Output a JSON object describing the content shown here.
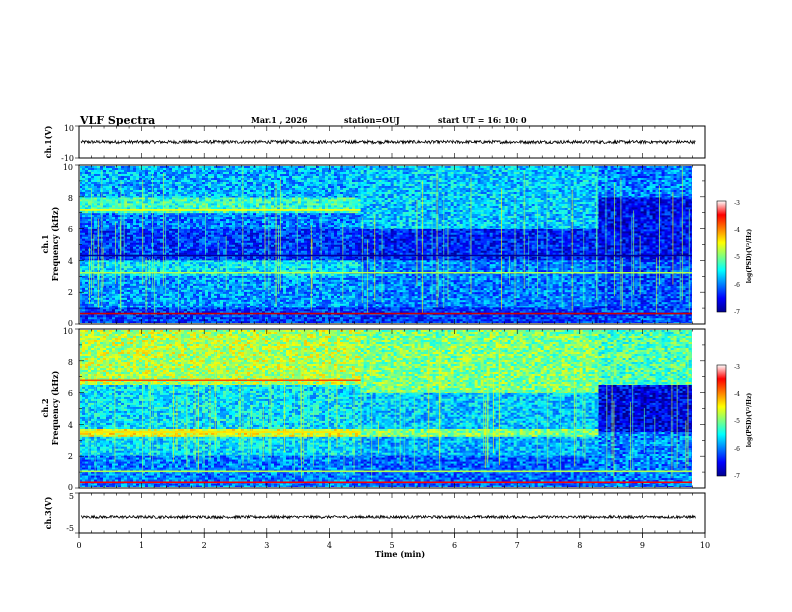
{
  "header": {
    "title": "VLF Spectra",
    "date": "Mar.1  , 2026",
    "station": "station=OUJ",
    "start": "start  UT =   16: 10: 0"
  },
  "chart_data": [
    {
      "type": "line",
      "panel": "waveform-ch1",
      "ylabel": "ch.1(V)",
      "ylim": [
        -10,
        10
      ],
      "yticks": [
        "10",
        "-10"
      ],
      "xlim": [
        0,
        10
      ],
      "series": [
        {
          "mean": 0.0,
          "amplitude": 1.0,
          "x_end": 9.85
        }
      ]
    },
    {
      "type": "heatmap",
      "panel": "spectrogram-ch1",
      "ylabel_top": "ch.1",
      "ylabel": "Frequency (kHz)",
      "ylim": [
        0,
        10
      ],
      "yticks": [
        "0",
        "2",
        "4",
        "6",
        "8",
        "10"
      ],
      "xlim": [
        0,
        9.85
      ],
      "colorbar": {
        "label": "log(PSD)(V²/Hz)",
        "range": [
          -7,
          -3
        ],
        "ticks": [
          "-3",
          "-4",
          "-5",
          "-6",
          "-7"
        ]
      },
      "segments": [
        {
          "t_start": 0,
          "t_end": 4.5,
          "bands": [
            {
              "f_min": 0,
              "f_max": 1,
              "level": -6.3
            },
            {
              "f_min": 1,
              "f_max": 3,
              "level": -5.9
            },
            {
              "f_min": 3,
              "f_max": 4,
              "level": -5.6
            },
            {
              "f_min": 4,
              "f_max": 6,
              "level": -6.3
            },
            {
              "f_min": 6,
              "f_max": 7,
              "level": -6.0
            },
            {
              "f_min": 7,
              "f_max": 8,
              "level": -5.3
            },
            {
              "f_min": 8,
              "f_max": 10,
              "level": -5.8
            }
          ]
        },
        {
          "t_start": 4.5,
          "t_end": 8.3,
          "bands": [
            {
              "f_min": 0,
              "f_max": 1,
              "level": -6.3
            },
            {
              "f_min": 1,
              "f_max": 4,
              "level": -6.0
            },
            {
              "f_min": 4,
              "f_max": 6,
              "level": -6.4
            },
            {
              "f_min": 6,
              "f_max": 10,
              "level": -5.7
            }
          ]
        },
        {
          "t_start": 8.3,
          "t_end": 9.85,
          "bands": [
            {
              "f_min": 0,
              "f_max": 4,
              "level": -6.2
            },
            {
              "f_min": 4,
              "f_max": 8,
              "level": -6.5
            },
            {
              "f_min": 8,
              "f_max": 10,
              "level": -6.0
            }
          ]
        }
      ],
      "lines": [
        {
          "freq": 0.6,
          "level": -3.3
        },
        {
          "freq": 7.2,
          "level": -4.5,
          "t_end": 4.5
        },
        {
          "freq": 3.2,
          "level": -4.8
        },
        {
          "freq": 4.3,
          "level": -6.9
        }
      ]
    },
    {
      "type": "heatmap",
      "panel": "spectrogram-ch2",
      "ylabel_top": "ch.2",
      "ylabel": "Frequency (kHz)",
      "ylim": [
        0,
        10
      ],
      "yticks": [
        "0",
        "2",
        "4",
        "6",
        "8",
        "10"
      ],
      "xlim": [
        0,
        9.85
      ],
      "colorbar": {
        "label": "log(PSD)(V²/Hz)",
        "range": [
          -7,
          -3
        ],
        "ticks": [
          "-3",
          "-4",
          "-5",
          "-6",
          "-7"
        ]
      },
      "segments": [
        {
          "t_start": 0,
          "t_end": 4.5,
          "bands": [
            {
              "f_min": 0,
              "f_max": 2,
              "level": -6.0
            },
            {
              "f_min": 2,
              "f_max": 3.2,
              "level": -5.6
            },
            {
              "f_min": 3.2,
              "f_max": 3.7,
              "level": -4.6
            },
            {
              "f_min": 3.7,
              "f_max": 6.5,
              "level": -5.6
            },
            {
              "f_min": 6.5,
              "f_max": 10,
              "level": -4.8
            }
          ]
        },
        {
          "t_start": 4.5,
          "t_end": 8.3,
          "bands": [
            {
              "f_min": 0,
              "f_max": 2,
              "level": -6.1
            },
            {
              "f_min": 2,
              "f_max": 3.2,
              "level": -5.8
            },
            {
              "f_min": 3.2,
              "f_max": 3.7,
              "level": -5.0
            },
            {
              "f_min": 3.7,
              "f_max": 6.0,
              "level": -5.7
            },
            {
              "f_min": 6.0,
              "f_max": 10,
              "level": -5.0
            }
          ]
        },
        {
          "t_start": 8.3,
          "t_end": 9.85,
          "bands": [
            {
              "f_min": 0,
              "f_max": 3.5,
              "level": -6.0
            },
            {
              "f_min": 3.5,
              "f_max": 6.5,
              "level": -6.6
            },
            {
              "f_min": 6.5,
              "f_max": 10,
              "level": -5.2
            }
          ]
        }
      ],
      "lines": [
        {
          "freq": 6.8,
          "level": -3.8,
          "t_end": 4.5
        },
        {
          "freq": 3.5,
          "level": -4.4,
          "t_end": 4.5
        },
        {
          "freq": 1.0,
          "level": -4.8
        },
        {
          "freq": 0.3,
          "level": -3.5
        }
      ]
    },
    {
      "type": "line",
      "panel": "waveform-ch3",
      "ylabel": "ch.3(V)",
      "ylim": [
        -5,
        5
      ],
      "yticks": [
        "5",
        "-5"
      ],
      "xlim": [
        0,
        10
      ],
      "series": [
        {
          "mean": -1.0,
          "amplitude": 0.35,
          "x_end": 9.85
        }
      ]
    }
  ],
  "xaxis": {
    "label": "Time (min)",
    "range": [
      0,
      10
    ],
    "ticks": [
      "0",
      "1",
      "2",
      "3",
      "4",
      "5",
      "6",
      "7",
      "8",
      "9",
      "10"
    ]
  }
}
